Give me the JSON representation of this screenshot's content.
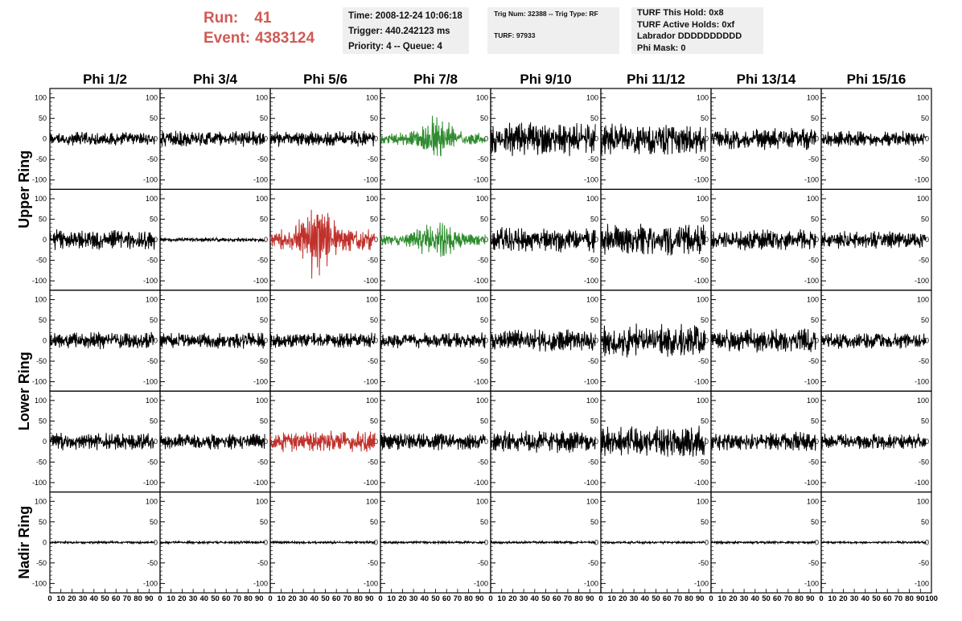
{
  "header": {
    "run_label": "Run:",
    "run_value": "41",
    "event_label": "Event:",
    "event_value": "4383124",
    "time_line": "Time: 2008-12-24 10:06:18",
    "trigger_line": "Trigger: 440.242123 ms",
    "priority_line": "Priority: 4 -- Queue: 4",
    "trig_line": "Trig Num: 32388 -- Trig Type: RF",
    "turf_line": "TURF: 97933",
    "turf_hold_line": "TURF This Hold: 0x8",
    "turf_active_line": "TURF Active Holds: 0xf",
    "labrador_line": "Labrador DDDDDDDDDD",
    "phi_mask_line": "Phi Mask: 0"
  },
  "chart_data": {
    "type": "line",
    "columns": [
      "Phi 1/2",
      "Phi 3/4",
      "Phi 5/6",
      "Phi 7/8",
      "Phi 9/10",
      "Phi 11/12",
      "Phi 13/14",
      "Phi 15/16"
    ],
    "ring_labels": [
      "Upper Ring",
      "Lower Ring",
      "Nadir Ring"
    ],
    "rows_per_ring": [
      2,
      2,
      1
    ],
    "x_range": [
      0,
      100
    ],
    "trace_x_range": [
      0,
      95
    ],
    "ylim": [
      -115,
      115
    ],
    "y_ticks": [
      -100,
      -50,
      0,
      50,
      100
    ],
    "x_tick_labels": [
      "0",
      "10",
      "20",
      "30",
      "40",
      "50",
      "60",
      "70",
      "80",
      "90",
      "100"
    ],
    "grid": false,
    "colors": {
      "normal": "#000000",
      "triggered_green": "#2e8b2e",
      "triggered_red": "#c0312b"
    },
    "panels": [
      [
        {
          "amp": 18,
          "color": "normal"
        },
        {
          "amp": 20,
          "color": "normal"
        },
        {
          "amp": 20,
          "color": "normal"
        },
        {
          "amp": 62,
          "color": "triggered_green",
          "burst": true,
          "center": 50
        },
        {
          "amp": 42,
          "color": "normal"
        },
        {
          "amp": 40,
          "color": "normal"
        },
        {
          "amp": 28,
          "color": "normal"
        },
        {
          "amp": 20,
          "color": "normal"
        }
      ],
      [
        {
          "amp": 26,
          "color": "normal"
        },
        {
          "amp": 5,
          "color": "normal"
        },
        {
          "amp": 110,
          "color": "triggered_red",
          "burst": true,
          "center": 43
        },
        {
          "amp": 58,
          "color": "triggered_green",
          "burst": true,
          "center": 50
        },
        {
          "amp": 32,
          "color": "normal"
        },
        {
          "amp": 40,
          "color": "normal"
        },
        {
          "amp": 26,
          "color": "normal"
        },
        {
          "amp": 22,
          "color": "normal"
        }
      ],
      [
        {
          "amp": 22,
          "color": "normal"
        },
        {
          "amp": 20,
          "color": "normal"
        },
        {
          "amp": 20,
          "color": "normal"
        },
        {
          "amp": 20,
          "color": "normal"
        },
        {
          "amp": 28,
          "color": "normal"
        },
        {
          "amp": 42,
          "color": "normal"
        },
        {
          "amp": 30,
          "color": "normal"
        },
        {
          "amp": 20,
          "color": "normal"
        }
      ],
      [
        {
          "amp": 22,
          "color": "normal"
        },
        {
          "amp": 20,
          "color": "normal"
        },
        {
          "amp": 28,
          "color": "triggered_red"
        },
        {
          "amp": 22,
          "color": "normal"
        },
        {
          "amp": 28,
          "color": "normal"
        },
        {
          "amp": 40,
          "color": "normal"
        },
        {
          "amp": 24,
          "color": "normal"
        },
        {
          "amp": 20,
          "color": "normal"
        }
      ],
      [
        {
          "amp": 3,
          "color": "normal"
        },
        {
          "amp": 3,
          "color": "normal"
        },
        {
          "amp": 3,
          "color": "normal"
        },
        {
          "amp": 3,
          "color": "normal"
        },
        {
          "amp": 3,
          "color": "normal"
        },
        {
          "amp": 3,
          "color": "normal"
        },
        {
          "amp": 3,
          "color": "normal"
        },
        {
          "amp": 3,
          "color": "normal"
        }
      ]
    ]
  }
}
